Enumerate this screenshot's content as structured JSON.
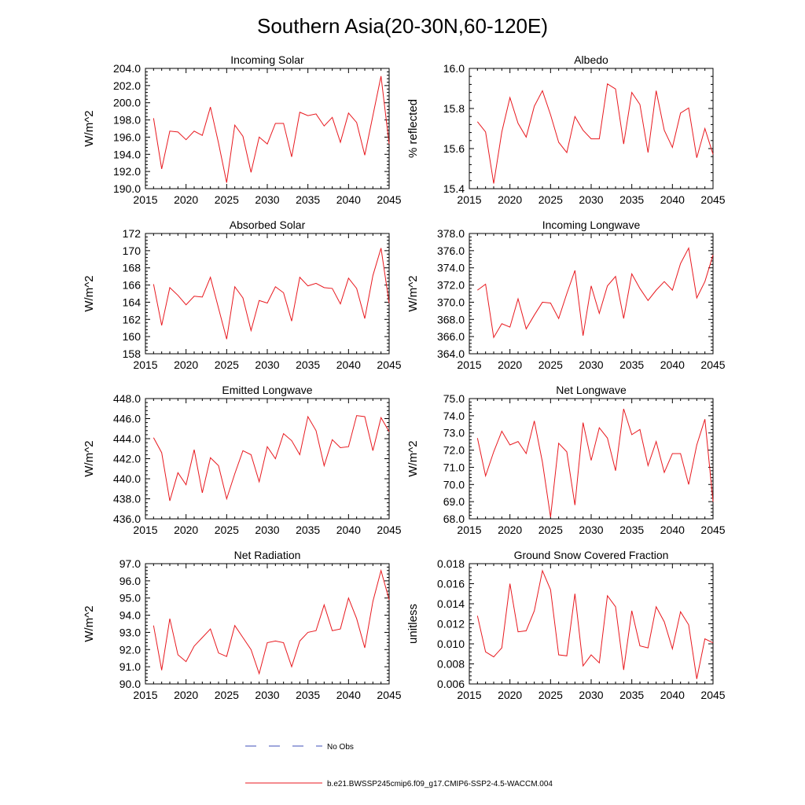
{
  "title": "Southern Asia(20-30N,60-120E)",
  "legend": {
    "entries": [
      {
        "label": "No Obs",
        "style": "dashed",
        "color": "#3f4fb8"
      },
      {
        "label": "b.e21.BWSSP245cmip6.f09_g17.CMIP6-SSP2-4.5-WACCM.004",
        "style": "solid",
        "color": "#e8191f"
      }
    ]
  },
  "chart_data": [
    {
      "type": "line",
      "title": "Incoming Solar",
      "ylabel": "W/m^2",
      "xlim": [
        2015,
        2045
      ],
      "ylim": [
        190.0,
        204.0
      ],
      "yticks": [
        "190.0",
        "192.0",
        "194.0",
        "196.0",
        "198.0",
        "200.0",
        "202.0",
        "204.0"
      ],
      "xticks": [
        "2015",
        "2020",
        "2025",
        "2030",
        "2035",
        "2040",
        "2045"
      ],
      "x": [
        2016,
        2017,
        2018,
        2019,
        2020,
        2021,
        2022,
        2023,
        2024,
        2025,
        2026,
        2027,
        2028,
        2029,
        2030,
        2031,
        2032,
        2033,
        2034,
        2035,
        2036,
        2037,
        2038,
        2039,
        2040,
        2041,
        2042,
        2043,
        2044,
        2045
      ],
      "series": [
        {
          "color": "#e8191f",
          "values": [
            198.2,
            192.3,
            196.7,
            196.6,
            195.7,
            196.7,
            196.2,
            199.5,
            195.3,
            190.7,
            197.4,
            196.1,
            191.9,
            196.0,
            195.2,
            197.6,
            197.6,
            193.7,
            198.9,
            198.5,
            198.7,
            197.3,
            198.3,
            195.4,
            198.8,
            197.7,
            193.9,
            198.5,
            203.1,
            195.2
          ]
        }
      ]
    },
    {
      "type": "line",
      "title": "Albedo",
      "ylabel": "% reflected",
      "xlim": [
        2015,
        2045
      ],
      "ylim": [
        15.4,
        16.1
      ],
      "yticks": [
        "15.4",
        "15.6",
        "15.8",
        "16.0"
      ],
      "xticks": [
        "2015",
        "2020",
        "2025",
        "2030",
        "2035",
        "2040",
        "2045"
      ],
      "x": [
        2016,
        2017,
        2018,
        2019,
        2020,
        2021,
        2022,
        2023,
        2024,
        2025,
        2026,
        2027,
        2028,
        2029,
        2030,
        2031,
        2032,
        2033,
        2034,
        2035,
        2036,
        2037,
        2038,
        2039,
        2040,
        2041,
        2042,
        2043,
        2044,
        2045
      ],
      "series": [
        {
          "color": "#e8191f",
          "values": [
            15.79,
            15.73,
            15.43,
            15.73,
            15.93,
            15.78,
            15.7,
            15.88,
            15.97,
            15.83,
            15.67,
            15.61,
            15.82,
            15.74,
            15.69,
            15.69,
            16.01,
            15.98,
            15.66,
            15.96,
            15.89,
            15.61,
            15.97,
            15.74,
            15.64,
            15.84,
            15.87,
            15.58,
            15.75,
            15.6
          ]
        }
      ]
    },
    {
      "type": "line",
      "title": "Absorbed Solar",
      "ylabel": "W/m^2",
      "xlim": [
        2015,
        2045
      ],
      "ylim": [
        158,
        172
      ],
      "yticks": [
        "158",
        "160",
        "162",
        "164",
        "166",
        "168",
        "170",
        "172"
      ],
      "xticks": [
        "2015",
        "2020",
        "2025",
        "2030",
        "2035",
        "2040",
        "2045"
      ],
      "x": [
        2016,
        2017,
        2018,
        2019,
        2020,
        2021,
        2022,
        2023,
        2024,
        2025,
        2026,
        2027,
        2028,
        2029,
        2030,
        2031,
        2032,
        2033,
        2034,
        2035,
        2036,
        2037,
        2038,
        2039,
        2040,
        2041,
        2042,
        2043,
        2044,
        2045
      ],
      "series": [
        {
          "color": "#e8191f",
          "values": [
            166.1,
            161.3,
            165.7,
            164.8,
            163.7,
            164.7,
            164.6,
            166.9,
            163.3,
            159.7,
            165.8,
            164.5,
            160.7,
            164.2,
            163.9,
            165.8,
            165.1,
            161.8,
            166.9,
            165.9,
            166.2,
            165.7,
            165.6,
            163.8,
            166.8,
            165.6,
            162.1,
            167.1,
            170.3,
            163.9
          ]
        }
      ]
    },
    {
      "type": "line",
      "title": "Incoming Longwave",
      "ylabel": "W/m^2",
      "xlim": [
        2015,
        2045
      ],
      "ylim": [
        364.0,
        378.0
      ],
      "yticks": [
        "364.0",
        "366.0",
        "368.0",
        "370.0",
        "372.0",
        "374.0",
        "376.0",
        "378.0"
      ],
      "xticks": [
        "2015",
        "2020",
        "2025",
        "2030",
        "2035",
        "2040",
        "2045"
      ],
      "x": [
        2016,
        2017,
        2018,
        2019,
        2020,
        2021,
        2022,
        2023,
        2024,
        2025,
        2026,
        2027,
        2028,
        2029,
        2030,
        2031,
        2032,
        2033,
        2034,
        2035,
        2036,
        2037,
        2038,
        2039,
        2040,
        2041,
        2042,
        2043,
        2044,
        2045
      ],
      "series": [
        {
          "color": "#e8191f",
          "values": [
            371.4,
            372.1,
            365.9,
            367.5,
            367.1,
            370.4,
            366.9,
            368.5,
            370.0,
            369.9,
            368.1,
            371.0,
            373.7,
            366.1,
            371.9,
            368.7,
            371.9,
            373.0,
            368.1,
            373.3,
            371.6,
            370.2,
            371.4,
            372.4,
            371.4,
            374.5,
            376.3,
            370.5,
            372.4,
            375.5
          ]
        }
      ]
    },
    {
      "type": "line",
      "title": "Emitted Longwave",
      "ylabel": "W/m^2",
      "xlim": [
        2015,
        2045
      ],
      "ylim": [
        436.0,
        448.0
      ],
      "yticks": [
        "436.0",
        "438.0",
        "440.0",
        "442.0",
        "444.0",
        "446.0",
        "448.0"
      ],
      "xticks": [
        "2015",
        "2020",
        "2025",
        "2030",
        "2035",
        "2040",
        "2045"
      ],
      "x": [
        2016,
        2017,
        2018,
        2019,
        2020,
        2021,
        2022,
        2023,
        2024,
        2025,
        2026,
        2027,
        2028,
        2029,
        2030,
        2031,
        2032,
        2033,
        2034,
        2035,
        2036,
        2037,
        2038,
        2039,
        2040,
        2041,
        2042,
        2043,
        2044,
        2045
      ],
      "series": [
        {
          "color": "#e8191f",
          "values": [
            444.1,
            442.6,
            437.8,
            440.6,
            439.4,
            442.9,
            438.6,
            442.1,
            441.3,
            438.0,
            440.5,
            442.8,
            442.4,
            439.7,
            443.2,
            442.0,
            444.5,
            443.8,
            442.4,
            446.2,
            444.8,
            441.3,
            443.9,
            443.1,
            443.2,
            446.3,
            446.2,
            442.8,
            446.1,
            444.7
          ]
        }
      ]
    },
    {
      "type": "line",
      "title": "Net Longwave",
      "ylabel": "W/m^2",
      "xlim": [
        2015,
        2045
      ],
      "ylim": [
        68.0,
        75.0
      ],
      "yticks": [
        "68.0",
        "69.0",
        "70.0",
        "71.0",
        "72.0",
        "73.0",
        "74.0",
        "75.0"
      ],
      "xticks": [
        "2015",
        "2020",
        "2025",
        "2030",
        "2035",
        "2040",
        "2045"
      ],
      "x": [
        2016,
        2017,
        2018,
        2019,
        2020,
        2021,
        2022,
        2023,
        2024,
        2025,
        2026,
        2027,
        2028,
        2029,
        2030,
        2031,
        2032,
        2033,
        2034,
        2035,
        2036,
        2037,
        2038,
        2039,
        2040,
        2041,
        2042,
        2043,
        2044,
        2045
      ],
      "series": [
        {
          "color": "#e8191f",
          "values": [
            72.7,
            70.5,
            71.9,
            73.1,
            72.3,
            72.5,
            71.8,
            73.7,
            71.3,
            68.1,
            72.4,
            71.9,
            68.8,
            73.6,
            71.4,
            73.3,
            72.7,
            70.8,
            74.4,
            72.9,
            73.2,
            71.1,
            72.5,
            70.7,
            71.8,
            71.8,
            70.0,
            72.3,
            73.8,
            69.0
          ]
        }
      ]
    },
    {
      "type": "line",
      "title": "Net Radiation",
      "ylabel": "W/m^2",
      "xlim": [
        2015,
        2045
      ],
      "ylim": [
        90.0,
        97.0
      ],
      "yticks": [
        "90.0",
        "91.0",
        "92.0",
        "93.0",
        "94.0",
        "95.0",
        "96.0",
        "97.0"
      ],
      "xticks": [
        "2015",
        "2020",
        "2025",
        "2030",
        "2035",
        "2040",
        "2045"
      ],
      "x": [
        2016,
        2017,
        2018,
        2019,
        2020,
        2021,
        2022,
        2023,
        2024,
        2025,
        2026,
        2027,
        2028,
        2029,
        2030,
        2031,
        2032,
        2033,
        2034,
        2035,
        2036,
        2037,
        2038,
        2039,
        2040,
        2041,
        2042,
        2043,
        2044,
        2045
      ],
      "series": [
        {
          "color": "#e8191f",
          "values": [
            93.4,
            90.8,
            93.8,
            91.7,
            91.3,
            92.2,
            92.7,
            93.2,
            91.8,
            91.6,
            93.4,
            92.7,
            92.0,
            90.6,
            92.4,
            92.5,
            92.4,
            91.0,
            92.5,
            93.0,
            93.1,
            94.6,
            93.1,
            93.2,
            95.0,
            93.8,
            92.1,
            94.8,
            96.6,
            94.9
          ]
        }
      ]
    },
    {
      "type": "line",
      "title": "Ground Snow Covered Fraction",
      "ylabel": "unitless",
      "xlim": [
        2015,
        2045
      ],
      "ylim": [
        0.006,
        0.018
      ],
      "yticks": [
        "0.006",
        "0.008",
        "0.010",
        "0.012",
        "0.014",
        "0.016",
        "0.018"
      ],
      "xticks": [
        "2015",
        "2020",
        "2025",
        "2030",
        "2035",
        "2040",
        "2045"
      ],
      "x": [
        2016,
        2017,
        2018,
        2019,
        2020,
        2021,
        2022,
        2023,
        2024,
        2025,
        2026,
        2027,
        2028,
        2029,
        2030,
        2031,
        2032,
        2033,
        2034,
        2035,
        2036,
        2037,
        2038,
        2039,
        2040,
        2041,
        2042,
        2043,
        2044,
        2045
      ],
      "series": [
        {
          "color": "#e8191f",
          "values": [
            0.0128,
            0.0092,
            0.0087,
            0.0096,
            0.016,
            0.0112,
            0.0113,
            0.0133,
            0.0173,
            0.0154,
            0.0089,
            0.0088,
            0.015,
            0.0078,
            0.0089,
            0.0081,
            0.0148,
            0.0137,
            0.0074,
            0.0133,
            0.0098,
            0.0096,
            0.0137,
            0.0122,
            0.0095,
            0.0132,
            0.0119,
            0.0065,
            0.0105,
            0.0101
          ]
        }
      ]
    }
  ]
}
